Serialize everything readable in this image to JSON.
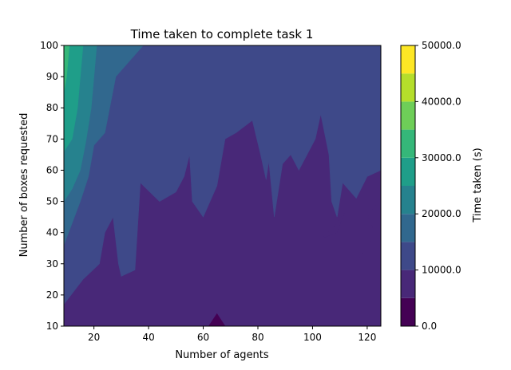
{
  "chart_data": {
    "type": "contourf",
    "title": "Time taken to complete task 1",
    "xlabel": "Number of agents",
    "ylabel": "Number of boxes requested",
    "xlim": [
      9,
      125
    ],
    "ylim": [
      10,
      100
    ],
    "x_ticks": [
      20,
      40,
      60,
      80,
      100,
      120
    ],
    "y_ticks": [
      10,
      20,
      30,
      40,
      50,
      60,
      70,
      80,
      90,
      100
    ],
    "x_tick_labels": [
      "20",
      "40",
      "60",
      "80",
      "100",
      "120"
    ],
    "y_tick_labels": [
      "10",
      "20",
      "30",
      "40",
      "50",
      "60",
      "70",
      "80",
      "90",
      "100"
    ],
    "colorbar": {
      "label": "Time taken (s)",
      "range": [
        0,
        50000
      ],
      "ticks": [
        0,
        10000,
        20000,
        30000,
        40000,
        50000
      ],
      "tick_labels": [
        "0.0",
        "10000.0",
        "20000.0",
        "30000.0",
        "40000.0",
        "50000.0"
      ],
      "levels": [
        0,
        5000,
        10000,
        15000,
        20000,
        25000,
        30000,
        35000,
        40000,
        45000,
        50000
      ],
      "colors": [
        "#440154",
        "#482878",
        "#3e4989",
        "#31688e",
        "#26828e",
        "#1f9e89",
        "#35b779",
        "#6ece58",
        "#b5de2b",
        "#fde725"
      ]
    },
    "regions": [
      {
        "level": 1,
        "points": [
          [
            9,
            10
          ],
          [
            125,
            10
          ],
          [
            125,
            100
          ],
          [
            9,
            100
          ]
        ]
      },
      {
        "level": 2,
        "points": [
          [
            9,
            17
          ],
          [
            16,
            25
          ],
          [
            22,
            30
          ],
          [
            24,
            40
          ],
          [
            27,
            45
          ],
          [
            29,
            30
          ],
          [
            30,
            26
          ],
          [
            35,
            28
          ],
          [
            37,
            56
          ],
          [
            44,
            50
          ],
          [
            50,
            53
          ],
          [
            53,
            58
          ],
          [
            55,
            65
          ],
          [
            56,
            50
          ],
          [
            60,
            45
          ],
          [
            65,
            55
          ],
          [
            68,
            70
          ],
          [
            72,
            72
          ],
          [
            78,
            76
          ],
          [
            81,
            65
          ],
          [
            83,
            57
          ],
          [
            84,
            63
          ],
          [
            86,
            45
          ],
          [
            89,
            62
          ],
          [
            92,
            65
          ],
          [
            95,
            60
          ],
          [
            101,
            70
          ],
          [
            103,
            78
          ],
          [
            106,
            65
          ],
          [
            107,
            50
          ],
          [
            109,
            45
          ],
          [
            111,
            56
          ],
          [
            116,
            51
          ],
          [
            120,
            58
          ],
          [
            125,
            60
          ],
          [
            125,
            100
          ],
          [
            9,
            100
          ]
        ]
      },
      {
        "level": 3,
        "points": [
          [
            9,
            36
          ],
          [
            12,
            43
          ],
          [
            15,
            50
          ],
          [
            18,
            58
          ],
          [
            20,
            68
          ],
          [
            24,
            72
          ],
          [
            28,
            90
          ],
          [
            33,
            95
          ],
          [
            38,
            100
          ],
          [
            9,
            100
          ]
        ]
      },
      {
        "level": 4,
        "points": [
          [
            9,
            50
          ],
          [
            12,
            54
          ],
          [
            15,
            60
          ],
          [
            17,
            69
          ],
          [
            19,
            80
          ],
          [
            21,
            100
          ],
          [
            9,
            100
          ]
        ]
      },
      {
        "level": 5,
        "points": [
          [
            9,
            66
          ],
          [
            12,
            70
          ],
          [
            14,
            80
          ],
          [
            15,
            90
          ],
          [
            16,
            100
          ],
          [
            9,
            100
          ]
        ]
      },
      {
        "level": 6,
        "points": [
          [
            9,
            85
          ],
          [
            10,
            90
          ],
          [
            11,
            100
          ],
          [
            9,
            100
          ]
        ]
      },
      {
        "level": 1,
        "points": [
          [
            115,
            30
          ],
          [
            120,
            35
          ],
          [
            123,
            40
          ],
          [
            120,
            45
          ],
          [
            125,
            51
          ],
          [
            125,
            10
          ],
          [
            115,
            10
          ]
        ]
      },
      {
        "level": 1,
        "points": [
          [
            103,
            38
          ],
          [
            108,
            42
          ],
          [
            112,
            47
          ],
          [
            109,
            40
          ]
        ]
      },
      {
        "level": 0,
        "points": [
          [
            62,
            10
          ],
          [
            65,
            14
          ],
          [
            68,
            10
          ]
        ]
      }
    ]
  }
}
